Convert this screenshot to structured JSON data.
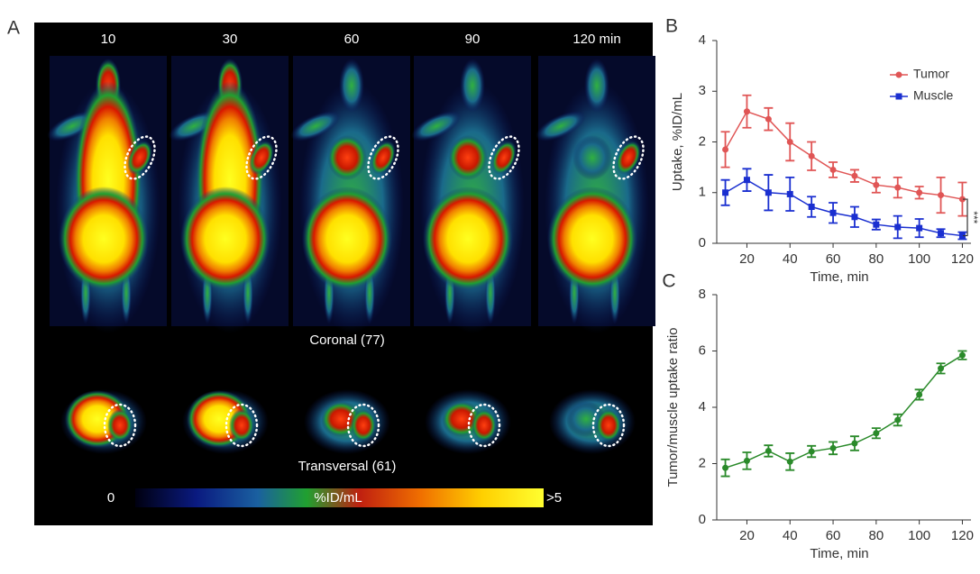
{
  "panel_a": {
    "label": "A",
    "time_labels": [
      "10",
      "30",
      "60",
      "90",
      "120 min"
    ],
    "coronal_label": "Coronal (77)",
    "transversal_label": "Transversal (61)",
    "scale_min": "0",
    "scale_label": "%ID/mL",
    "scale_max": ">5"
  },
  "chart_data": [
    {
      "type": "line",
      "panel_label": "B",
      "x_label": "Time, min",
      "y_label": "Uptake, %ID/mL",
      "x": [
        10,
        20,
        30,
        40,
        50,
        60,
        70,
        80,
        90,
        100,
        110,
        120
      ],
      "series": [
        {
          "name": "Tumor",
          "color": "#e05555",
          "marker": "circle",
          "values": [
            1.85,
            2.6,
            2.45,
            2.0,
            1.72,
            1.45,
            1.33,
            1.15,
            1.1,
            1.0,
            0.95,
            0.87
          ],
          "errors": [
            0.35,
            0.32,
            0.22,
            0.37,
            0.28,
            0.15,
            0.12,
            0.15,
            0.2,
            0.12,
            0.35,
            0.33
          ]
        },
        {
          "name": "Muscle",
          "color": "#1a2fd0",
          "marker": "square",
          "values": [
            1.0,
            1.25,
            1.0,
            0.97,
            0.72,
            0.6,
            0.52,
            0.37,
            0.32,
            0.3,
            0.2,
            0.15
          ],
          "errors": [
            0.25,
            0.22,
            0.35,
            0.33,
            0.2,
            0.2,
            0.2,
            0.1,
            0.22,
            0.18,
            0.08,
            0.07
          ]
        }
      ],
      "annotation": "***",
      "legend": "upper right",
      "xlim": [
        6,
        124
      ],
      "ylim": [
        0,
        4
      ],
      "xticks": [
        20,
        40,
        60,
        80,
        100,
        120
      ],
      "yticks": [
        0,
        1,
        2,
        3,
        4
      ]
    },
    {
      "type": "line",
      "panel_label": "C",
      "x_label": "Time, min",
      "y_label": "Tumor/muscle uptake ratio",
      "x": [
        10,
        20,
        30,
        40,
        50,
        60,
        70,
        80,
        90,
        100,
        110,
        120
      ],
      "series": [
        {
          "color": "#2a8a2a",
          "marker": "circle",
          "values": [
            1.85,
            2.1,
            2.45,
            2.07,
            2.43,
            2.55,
            2.72,
            3.08,
            3.55,
            4.45,
            5.38,
            5.85
          ],
          "errors": [
            0.3,
            0.3,
            0.2,
            0.3,
            0.2,
            0.22,
            0.25,
            0.18,
            0.2,
            0.18,
            0.18,
            0.15
          ]
        }
      ],
      "xlim": [
        6,
        124
      ],
      "ylim": [
        0,
        8
      ],
      "xticks": [
        20,
        40,
        60,
        80,
        100,
        120
      ],
      "yticks": [
        0,
        2,
        4,
        6,
        8
      ]
    }
  ]
}
